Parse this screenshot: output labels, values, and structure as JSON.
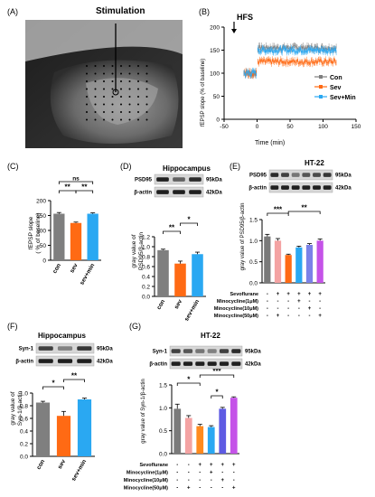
{
  "panels": {
    "A": {
      "letter": "(A)",
      "label": "Stimulation"
    },
    "B": {
      "letter": "(B)",
      "annotation": "HFS",
      "xlabel": "Time (min)",
      "ylabel": "fEPSP slope (% of baseline)"
    },
    "C": {
      "letter": "(C)",
      "ylabel": "fEPSP slope\n( % of baseline)"
    },
    "D": {
      "letter": "(D)",
      "title": "Hippocampus",
      "ylabel": "gray value of\nPSD95/β-actin"
    },
    "E": {
      "letter": "(E)",
      "title": "HT-22",
      "ylabel": "gray value of PSD95/β-actin"
    },
    "F": {
      "letter": "(F)",
      "title": "Hippocampus",
      "ylabel": "gray value of\nSyn-1/β-actin"
    },
    "G": {
      "letter": "(G)",
      "title": "HT-22",
      "ylabel": "gray value of Syn-1/β-actin"
    }
  },
  "blots": {
    "D": {
      "rows": [
        {
          "protein": "PSD95",
          "size": "95kDa"
        },
        {
          "protein": "β-actin",
          "size": "42kDa"
        }
      ]
    },
    "E": {
      "rows": [
        {
          "protein": "PSD95",
          "size": "95kDa"
        },
        {
          "protein": "β-actin",
          "size": "42kDa"
        }
      ]
    },
    "F": {
      "rows": [
        {
          "protein": "Syn-1",
          "size": "95kDa"
        },
        {
          "protein": "β-actin",
          "size": "42kDa"
        }
      ]
    },
    "G": {
      "rows": [
        {
          "protein": "Syn-1",
          "size": "95kDa"
        },
        {
          "protein": "β-actin",
          "size": "42kDa"
        }
      ]
    }
  },
  "treatment_tables": {
    "E": {
      "rows": [
        {
          "label": "Sevoflurane",
          "marks": [
            "-",
            "+",
            "+",
            "+",
            "+",
            "+"
          ]
        },
        {
          "label": "Minocycline(1μM)",
          "marks": [
            "-",
            "-",
            "-",
            "+",
            "-",
            "-"
          ]
        },
        {
          "label": "Minocycline(10μM)",
          "marks": [
            "-",
            "-",
            "-",
            "-",
            "+",
            "-"
          ]
        },
        {
          "label": "Minocycline(50μM)",
          "marks": [
            "-",
            "+",
            "-",
            "-",
            "-",
            "+"
          ]
        }
      ]
    },
    "G": {
      "rows": [
        {
          "label": "Sevoflurane",
          "marks": [
            "-",
            "-",
            "+",
            "+",
            "+",
            "+"
          ]
        },
        {
          "label": "Minocycline(1μM)",
          "marks": [
            "-",
            "-",
            "-",
            "+",
            "-",
            "-"
          ]
        },
        {
          "label": "Minocycline(10μM)",
          "marks": [
            "-",
            "-",
            "-",
            "-",
            "+",
            "-"
          ]
        },
        {
          "label": "Minocycline(50μM)",
          "marks": [
            "-",
            "+",
            "-",
            "-",
            "-",
            "+"
          ]
        }
      ]
    }
  },
  "colors": {
    "con": "#7f7f7f",
    "sev": "#ff6a14",
    "sevmin": "#2aa8f2",
    "e_bars": [
      "#7a7a7a",
      "#f4a3a3",
      "#ff6a14",
      "#2aa8f2",
      "#7b82e8",
      "#c553e8"
    ],
    "g_bars": [
      "#7a7a7a",
      "#f4a3a3",
      "#ff8a1e",
      "#2aa8f2",
      "#5e5be3",
      "#c553e8"
    ]
  },
  "chart_data": [
    {
      "panel": "B",
      "type": "line",
      "xlabel": "Time (min)",
      "ylabel": "fEPSP slope (% of baseline)",
      "xlim": [
        -50,
        150
      ],
      "ylim": [
        0,
        200
      ],
      "xticks": [
        -50,
        0,
        50,
        100,
        150
      ],
      "yticks": [
        0,
        50,
        100,
        150,
        200
      ],
      "legend_position": "right",
      "series": [
        {
          "name": "Con",
          "baseline": 100,
          "post": 155
        },
        {
          "name": "Sev",
          "baseline": 100,
          "post": 125
        },
        {
          "name": "Sev+Min",
          "baseline": 100,
          "post": 150
        }
      ],
      "x_range": [
        -20,
        120
      ]
    },
    {
      "panel": "C",
      "type": "bar",
      "categories": [
        "con",
        "sev",
        "sev+min"
      ],
      "values": [
        156,
        125,
        156
      ],
      "errors": [
        4,
        3,
        3
      ],
      "ylim": [
        0,
        200
      ],
      "yticks": [
        0,
        50,
        100,
        150,
        200
      ],
      "significance": [
        {
          "from": 0,
          "to": 1,
          "label": "**"
        },
        {
          "from": 1,
          "to": 2,
          "label": "**"
        },
        {
          "from": 0,
          "to": 2,
          "label": "ns"
        }
      ]
    },
    {
      "panel": "D",
      "type": "bar",
      "categories": [
        "con",
        "sev",
        "sev+min"
      ],
      "values": [
        0.93,
        0.66,
        0.85
      ],
      "errors": [
        0.02,
        0.05,
        0.04
      ],
      "ylim": [
        0,
        1.2
      ],
      "yticks": [
        0.0,
        0.2,
        0.4,
        0.6,
        0.8,
        1.0,
        1.2
      ],
      "significance": [
        {
          "from": 0,
          "to": 1,
          "label": "**"
        },
        {
          "from": 1,
          "to": 2,
          "label": "*"
        }
      ]
    },
    {
      "panel": "E",
      "type": "bar",
      "categories": [
        "1",
        "2",
        "3",
        "4",
        "5",
        "6"
      ],
      "values": [
        1.1,
        1.0,
        0.66,
        0.84,
        0.9,
        1.0
      ],
      "errors": [
        0.05,
        0.05,
        0.02,
        0.03,
        0.03,
        0.04
      ],
      "ylim": [
        0,
        1.5
      ],
      "yticks": [
        0.0,
        0.5,
        1.0,
        1.5
      ],
      "significance": [
        {
          "from": 0,
          "to": 2,
          "label": "***"
        },
        {
          "from": 2,
          "to": 5,
          "label": "**"
        }
      ]
    },
    {
      "panel": "F",
      "type": "bar",
      "categories": [
        "con",
        "sev",
        "sev+min"
      ],
      "values": [
        0.85,
        0.64,
        0.9
      ],
      "errors": [
        0.02,
        0.07,
        0.02
      ],
      "ylim": [
        0,
        1.0
      ],
      "yticks": [
        0.0,
        0.2,
        0.4,
        0.6,
        0.8,
        1.0
      ],
      "significance": [
        {
          "from": 0,
          "to": 1,
          "label": "*"
        },
        {
          "from": 1,
          "to": 2,
          "label": "**"
        }
      ]
    },
    {
      "panel": "G",
      "type": "bar",
      "categories": [
        "1",
        "2",
        "3",
        "4",
        "5",
        "6"
      ],
      "values": [
        0.98,
        0.78,
        0.6,
        0.58,
        0.98,
        1.22
      ],
      "errors": [
        0.1,
        0.05,
        0.04,
        0.03,
        0.03,
        0.02
      ],
      "ylim": [
        0,
        1.5
      ],
      "yticks": [
        0.0,
        0.5,
        1.0,
        1.5
      ],
      "significance": [
        {
          "from": 0,
          "to": 2,
          "label": "*"
        },
        {
          "from": 2,
          "to": 5,
          "label": "***"
        },
        {
          "from": 3,
          "to": 4,
          "label": "*"
        }
      ]
    }
  ]
}
